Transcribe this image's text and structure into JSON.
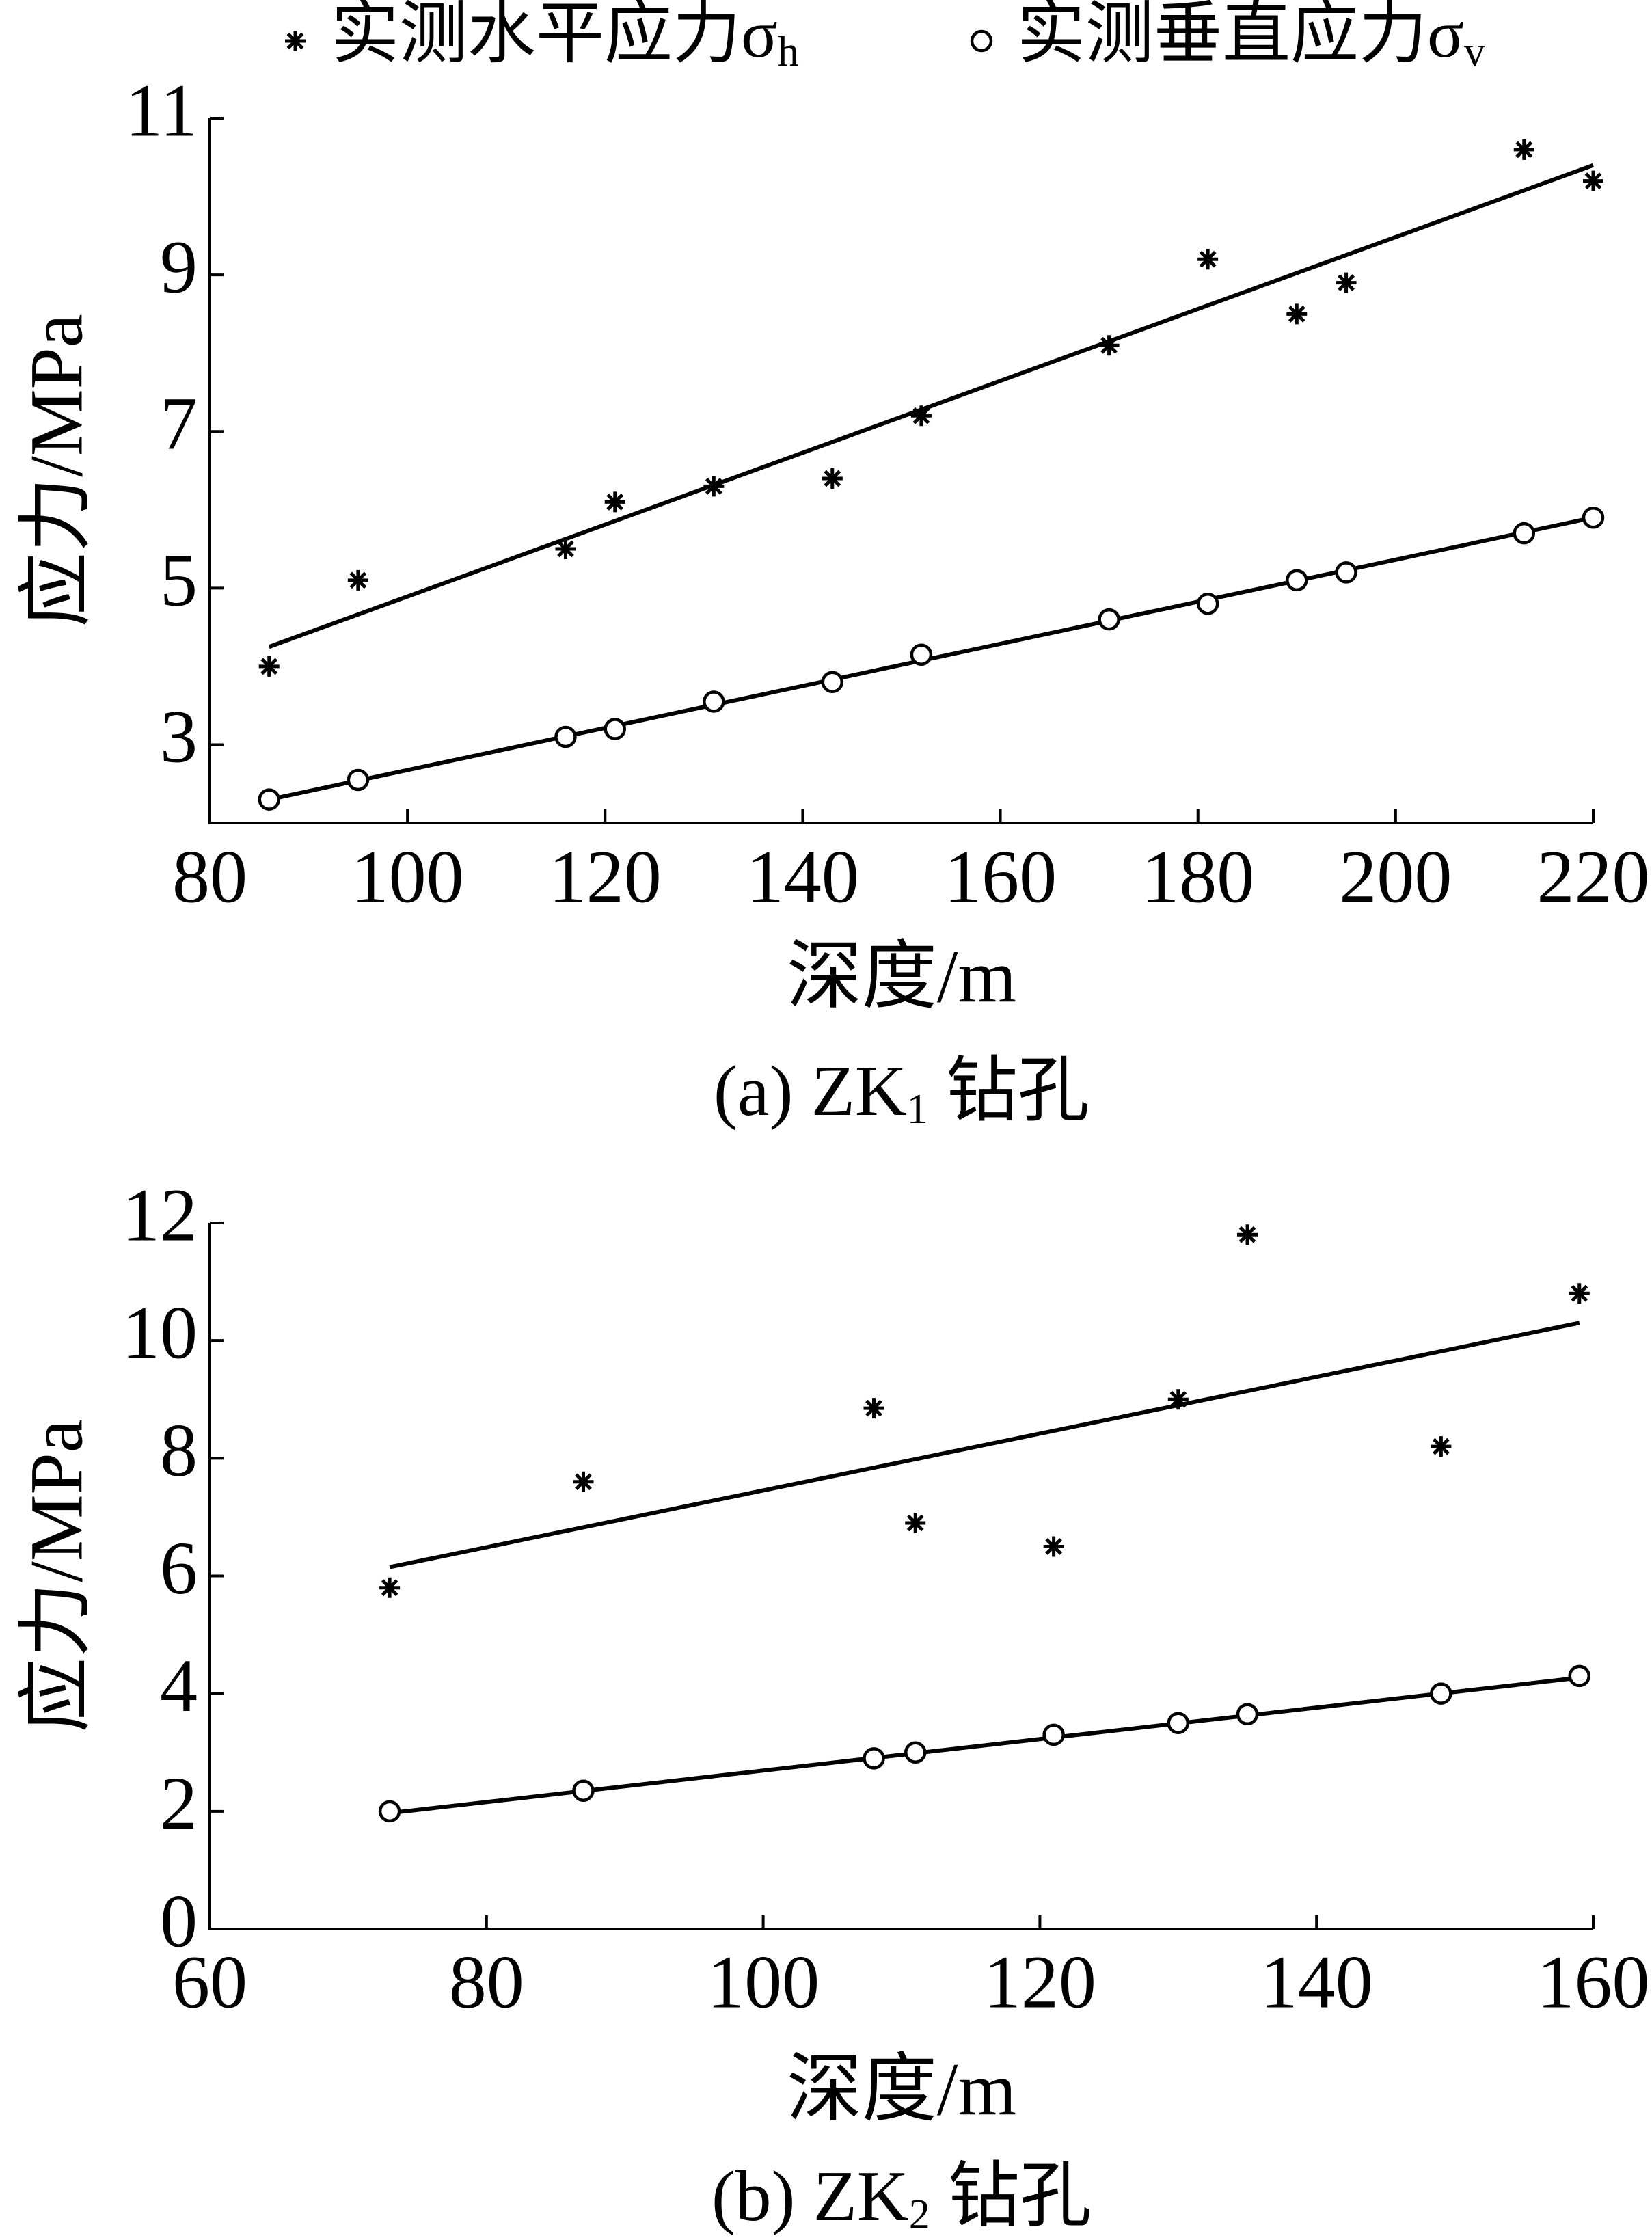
{
  "legend": [
    {
      "marker": "star",
      "name": "实测水平应力σ",
      "sub": "h"
    },
    {
      "marker": "circle",
      "name": "实测垂直应力σ",
      "sub": "v"
    }
  ],
  "chart_data": [
    {
      "type": "scatter",
      "caption": {
        "before": "(a)  ZK",
        "sub": "1",
        "after": " 钻孔"
      },
      "x_label": "深度/m",
      "y_label": "应力/MPa",
      "xlim": [
        80,
        220
      ],
      "xticks": [
        80,
        100,
        120,
        140,
        160,
        180,
        200,
        220
      ],
      "ylim": [
        2,
        11
      ],
      "yticks": [
        3,
        5,
        7,
        9,
        11
      ],
      "series": [
        {
          "marker": "star",
          "color": "#000000",
          "x": [
            86,
            95,
            116,
            121,
            131,
            143,
            152,
            171,
            181,
            190,
            195,
            213,
            220
          ],
          "values": [
            4.0,
            5.1,
            5.5,
            6.1,
            6.3,
            6.4,
            7.2,
            8.1,
            9.2,
            8.5,
            8.9,
            10.6,
            10.2
          ],
          "fit": {
            "x": [
              86,
              220
            ],
            "y": [
              4.25,
              10.4
            ]
          }
        },
        {
          "marker": "circle",
          "color": "#000000",
          "x": [
            86,
            95,
            116,
            121,
            131,
            143,
            152,
            171,
            181,
            190,
            195,
            213,
            220
          ],
          "values": [
            2.3,
            2.55,
            3.1,
            3.2,
            3.55,
            3.8,
            4.15,
            4.6,
            4.8,
            5.1,
            5.2,
            5.7,
            5.9
          ],
          "fit": {
            "x": [
              86,
              220
            ],
            "y": [
              2.3,
              5.9
            ]
          }
        }
      ]
    },
    {
      "type": "scatter",
      "caption": {
        "before": "(b)  ZK",
        "sub": "2",
        "after": " 钻孔"
      },
      "x_label": "深度/m",
      "y_label": "应力/MPa",
      "xlim": [
        60,
        160
      ],
      "xticks": [
        60,
        80,
        100,
        120,
        140,
        160
      ],
      "ylim": [
        0,
        12
      ],
      "yticks": [
        0,
        2,
        4,
        6,
        8,
        10,
        12
      ],
      "series": [
        {
          "marker": "star",
          "color": "#000000",
          "x": [
            73,
            87,
            108,
            111,
            121,
            130,
            135,
            149,
            159
          ],
          "values": [
            5.8,
            7.6,
            8.85,
            6.9,
            6.5,
            9.0,
            11.8,
            8.2,
            10.8
          ],
          "fit": {
            "x": [
              73,
              159
            ],
            "y": [
              6.15,
              10.3
            ]
          }
        },
        {
          "marker": "circle",
          "color": "#000000",
          "x": [
            73,
            87,
            108,
            111,
            121,
            130,
            135,
            149,
            159
          ],
          "values": [
            2.0,
            2.35,
            2.9,
            3.0,
            3.3,
            3.5,
            3.65,
            4.0,
            4.3
          ],
          "fit": {
            "x": [
              73,
              159
            ],
            "y": [
              1.97,
              4.27
            ]
          }
        }
      ]
    }
  ]
}
